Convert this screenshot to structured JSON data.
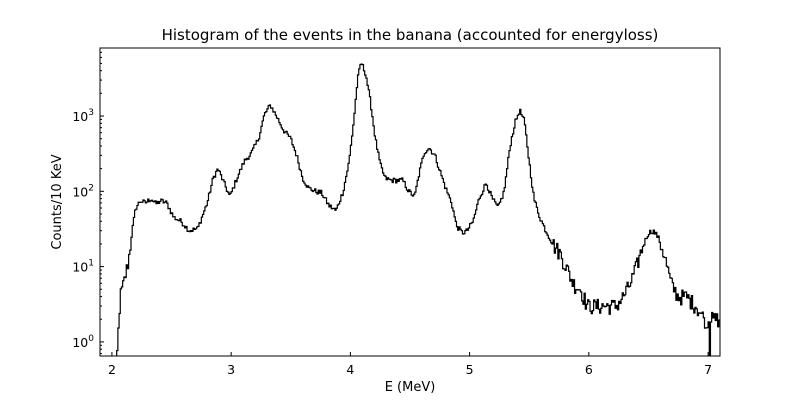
{
  "chart_data": {
    "type": "line",
    "style": "step-histogram",
    "title": "Histogram of the events in the banana (accounted for energyloss)",
    "xlabel": "E (MeV)",
    "ylabel": "Counts/10 KeV",
    "xlim": [
      1.9,
      7.1
    ],
    "ylim": [
      0.65,
      8000
    ],
    "yscale": "log",
    "grid": false,
    "line_color": "#000000",
    "x_ticks": [
      {
        "value": 2,
        "label": "2"
      },
      {
        "value": 3,
        "label": "3"
      },
      {
        "value": 4,
        "label": "4"
      },
      {
        "value": 5,
        "label": "5"
      },
      {
        "value": 6,
        "label": "6"
      },
      {
        "value": 7,
        "label": "7"
      }
    ],
    "y_ticks": [
      {
        "value": 1,
        "base": "10",
        "exp": "0"
      },
      {
        "value": 10,
        "base": "10",
        "exp": "1"
      },
      {
        "value": 100,
        "base": "10",
        "exp": "2"
      },
      {
        "value": 1000,
        "base": "10",
        "exp": "3"
      }
    ],
    "anchors": [
      [
        2.04,
        0.5
      ],
      [
        2.07,
        4
      ],
      [
        2.1,
        6
      ],
      [
        2.14,
        12
      ],
      [
        2.17,
        30
      ],
      [
        2.2,
        60
      ],
      [
        2.24,
        75
      ],
      [
        2.28,
        70
      ],
      [
        2.33,
        80
      ],
      [
        2.37,
        68
      ],
      [
        2.41,
        75
      ],
      [
        2.46,
        70
      ],
      [
        2.52,
        45
      ],
      [
        2.58,
        40
      ],
      [
        2.65,
        30
      ],
      [
        2.72,
        32
      ],
      [
        2.8,
        70
      ],
      [
        2.85,
        150
      ],
      [
        2.89,
        200
      ],
      [
        2.94,
        130
      ],
      [
        2.99,
        85
      ],
      [
        3.05,
        150
      ],
      [
        3.11,
        250
      ],
      [
        3.17,
        320
      ],
      [
        3.23,
        500
      ],
      [
        3.28,
        1050
      ],
      [
        3.33,
        1400
      ],
      [
        3.38,
        1000
      ],
      [
        3.44,
        650
      ],
      [
        3.5,
        500
      ],
      [
        3.55,
        300
      ],
      [
        3.6,
        150
      ],
      [
        3.65,
        110
      ],
      [
        3.71,
        100
      ],
      [
        3.76,
        95
      ],
      [
        3.82,
        65
      ],
      [
        3.88,
        55
      ],
      [
        3.94,
        100
      ],
      [
        3.99,
        250
      ],
      [
        4.03,
        900
      ],
      [
        4.06,
        3000
      ],
      [
        4.09,
        5200
      ],
      [
        4.13,
        3600
      ],
      [
        4.17,
        1500
      ],
      [
        4.21,
        500
      ],
      [
        4.25,
        230
      ],
      [
        4.29,
        150
      ],
      [
        4.34,
        140
      ],
      [
        4.39,
        140
      ],
      [
        4.44,
        140
      ],
      [
        4.49,
        100
      ],
      [
        4.54,
        85
      ],
      [
        4.58,
        180
      ],
      [
        4.62,
        330
      ],
      [
        4.66,
        380
      ],
      [
        4.71,
        300
      ],
      [
        4.75,
        190
      ],
      [
        4.8,
        110
      ],
      [
        4.85,
        70
      ],
      [
        4.89,
        35
      ],
      [
        4.94,
        28
      ],
      [
        4.98,
        30
      ],
      [
        5.03,
        40
      ],
      [
        5.08,
        80
      ],
      [
        5.14,
        130
      ],
      [
        5.19,
        80
      ],
      [
        5.24,
        60
      ],
      [
        5.29,
        100
      ],
      [
        5.34,
        400
      ],
      [
        5.38,
        800
      ],
      [
        5.42,
        1200
      ],
      [
        5.46,
        850
      ],
      [
        5.5,
        250
      ],
      [
        5.54,
        80
      ],
      [
        5.59,
        45
      ],
      [
        5.64,
        30
      ],
      [
        5.7,
        20
      ],
      [
        5.76,
        15
      ],
      [
        5.81,
        10
      ],
      [
        5.87,
        6
      ],
      [
        5.93,
        5
      ],
      [
        5.99,
        3
      ],
      [
        6.05,
        3
      ],
      [
        6.11,
        3
      ],
      [
        6.17,
        3
      ],
      [
        6.23,
        3
      ],
      [
        6.29,
        4
      ],
      [
        6.35,
        6
      ],
      [
        6.4,
        10
      ],
      [
        6.45,
        18
      ],
      [
        6.5,
        28
      ],
      [
        6.54,
        30
      ],
      [
        6.58,
        25
      ],
      [
        6.63,
        15
      ],
      [
        6.69,
        6
      ],
      [
        6.75,
        4
      ],
      [
        6.82,
        4
      ],
      [
        6.9,
        3
      ],
      [
        6.97,
        2
      ],
      [
        7.03,
        2
      ],
      [
        7.1,
        2
      ]
    ],
    "noise_amp": 0.08
  }
}
